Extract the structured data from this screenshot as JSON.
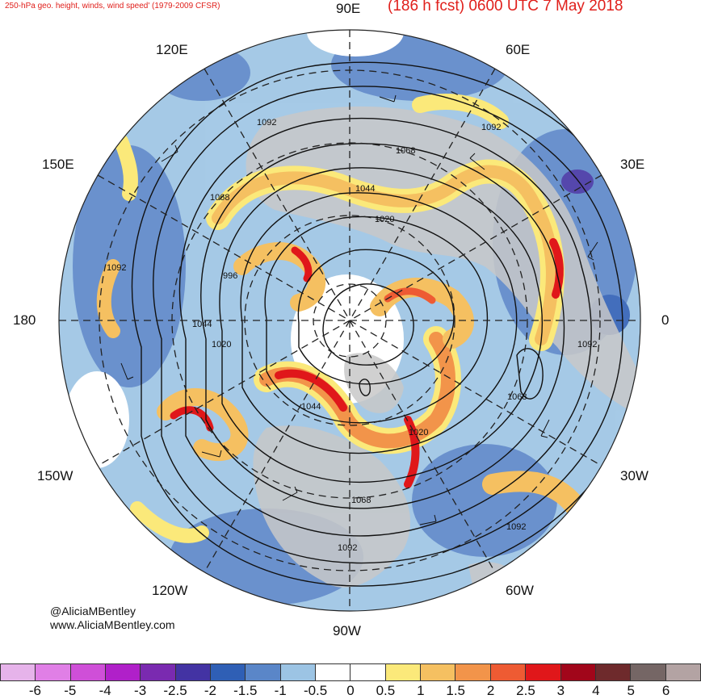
{
  "header": {
    "left_title": "250-hPa geo. height, winds, wind speed' (1979-2009 CFSR)",
    "right_title": "(186 h fcst) 0600 UTC 7 May 2018"
  },
  "longitude_labels": {
    "top": "90E",
    "upper_left": "120E",
    "upper_right": "60E",
    "left_upper": "150E",
    "right_upper": "30E",
    "left": "180",
    "right": "0",
    "left_lower": "150W",
    "right_lower": "30W",
    "lower_left": "120W",
    "lower_right": "60W",
    "bottom": "90W"
  },
  "credits": {
    "handle": "@AliciaMBentley",
    "site": "www.AliciaMBentley.com"
  },
  "contour_labels": [
    "1092",
    "1092",
    "1068",
    "1044",
    "1020",
    "1068",
    "1092",
    "996",
    "1044",
    "1020",
    "1044",
    "1020",
    "1068",
    "1092",
    "1092",
    "1068",
    "1092"
  ],
  "colorbar": {
    "colors": [
      "#e6b3ea",
      "#e07fe6",
      "#cf4fd8",
      "#b020c9",
      "#7a2ab0",
      "#4333a3",
      "#2f5fb5",
      "#5a86c8",
      "#9cc4e4",
      "#ffffff",
      "#ffffff",
      "#fbe97a",
      "#f5c061",
      "#f2944a",
      "#ee5b33",
      "#e0171a",
      "#a1061a",
      "#6e2a2c",
      "#756665",
      "#b3a3a3"
    ],
    "ticks": [
      "-6",
      "-5",
      "-4",
      "-3",
      "-2.5",
      "-2",
      "-1.5",
      "-1",
      "-0.5",
      "0",
      "0.5",
      "1",
      "1.5",
      "2",
      "2.5",
      "3",
      "4",
      "5",
      "6"
    ]
  }
}
